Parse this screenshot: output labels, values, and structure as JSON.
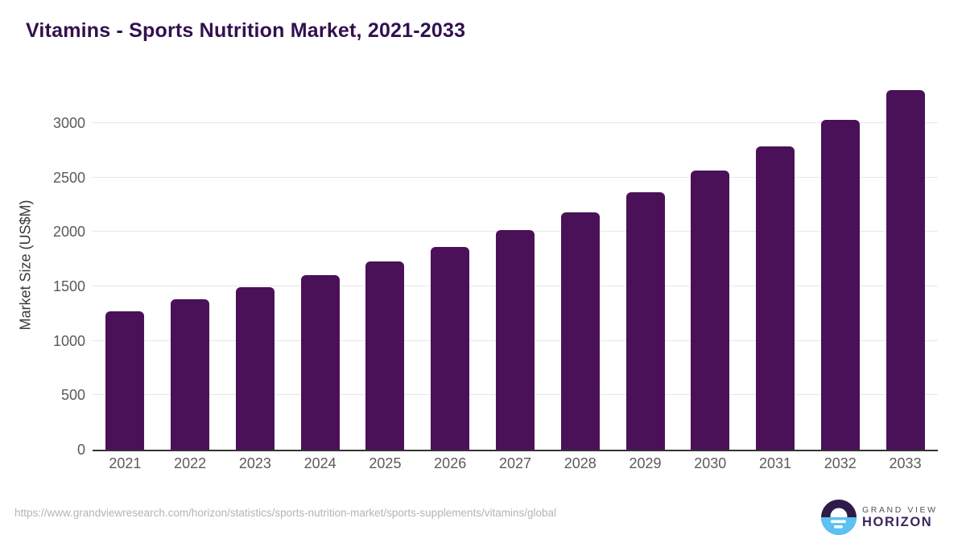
{
  "header": {
    "title": "Vitamins - Sports Nutrition Market, 2021-2033"
  },
  "chart_data": {
    "type": "bar",
    "title": "Vitamins - Sports Nutrition Market, 2021-2033",
    "categories": [
      "2021",
      "2022",
      "2023",
      "2024",
      "2025",
      "2026",
      "2027",
      "2028",
      "2029",
      "2030",
      "2031",
      "2032",
      "2033"
    ],
    "values": [
      1270,
      1385,
      1490,
      1605,
      1730,
      1862,
      2015,
      2180,
      2365,
      2565,
      2785,
      3030,
      3305
    ],
    "xlabel": "",
    "ylabel": "Market Size (US$M)",
    "yticks": [
      0,
      500,
      1000,
      1500,
      2000,
      2500,
      3000
    ],
    "ylim": [
      0,
      3400
    ],
    "grid": true,
    "legend": "none",
    "bar_color": "#4a1158"
  },
  "footer": {
    "source_url": "https://www.grandviewresearch.com/horizon/statistics/sports-nutrition-market/sports-supplements/vitamins/global",
    "logo": {
      "icon": "horizon-sun-circle-icon",
      "brand_line1": "GRAND VIEW",
      "brand_line2": "HORIZON"
    }
  },
  "colors": {
    "title": "#321050",
    "bar": "#4a1158",
    "grid": "#e7e7e7",
    "axis": "#333333",
    "tick": "#5a5a5a",
    "url": "#b4b4b4",
    "logo_dark": "#2d1b4a",
    "logo_blue": "#5bc2f1",
    "brand_line1": "#54505f",
    "brand_line2": "#3c2562"
  }
}
